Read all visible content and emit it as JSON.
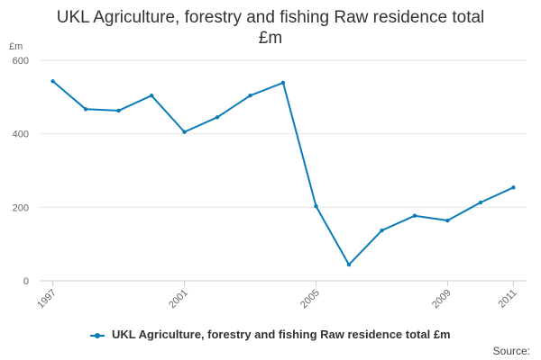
{
  "title_line1": "UKL Agriculture, forestry and fishing Raw residence total",
  "title_line2": "£m",
  "y_unit": "£m",
  "source_label": "Source:",
  "colors": {
    "series": "#0a7cba",
    "grid": "#e6e6e6",
    "axis": "#cccccc"
  },
  "chart_data": {
    "type": "line",
    "title": "UKL Agriculture, forestry and fishing Raw residence total £m",
    "xlabel": "",
    "ylabel": "£m",
    "ylim": [
      0,
      600
    ],
    "y_ticks": [
      0,
      200,
      400,
      600
    ],
    "x_ticks": [
      1997,
      2001,
      2005,
      2009,
      2011
    ],
    "grid": true,
    "legend": "bottom",
    "series": [
      {
        "name": "UKL Agriculture, forestry and fishing Raw residence total £m",
        "x": [
          1997,
          1998,
          1999,
          2000,
          2001,
          2002,
          2003,
          2004,
          2005,
          2006,
          2007,
          2008,
          2009,
          2010,
          2011
        ],
        "values": [
          543,
          467,
          463,
          504,
          405,
          445,
          504,
          539,
          203,
          44,
          137,
          177,
          164,
          213,
          254
        ]
      }
    ]
  }
}
